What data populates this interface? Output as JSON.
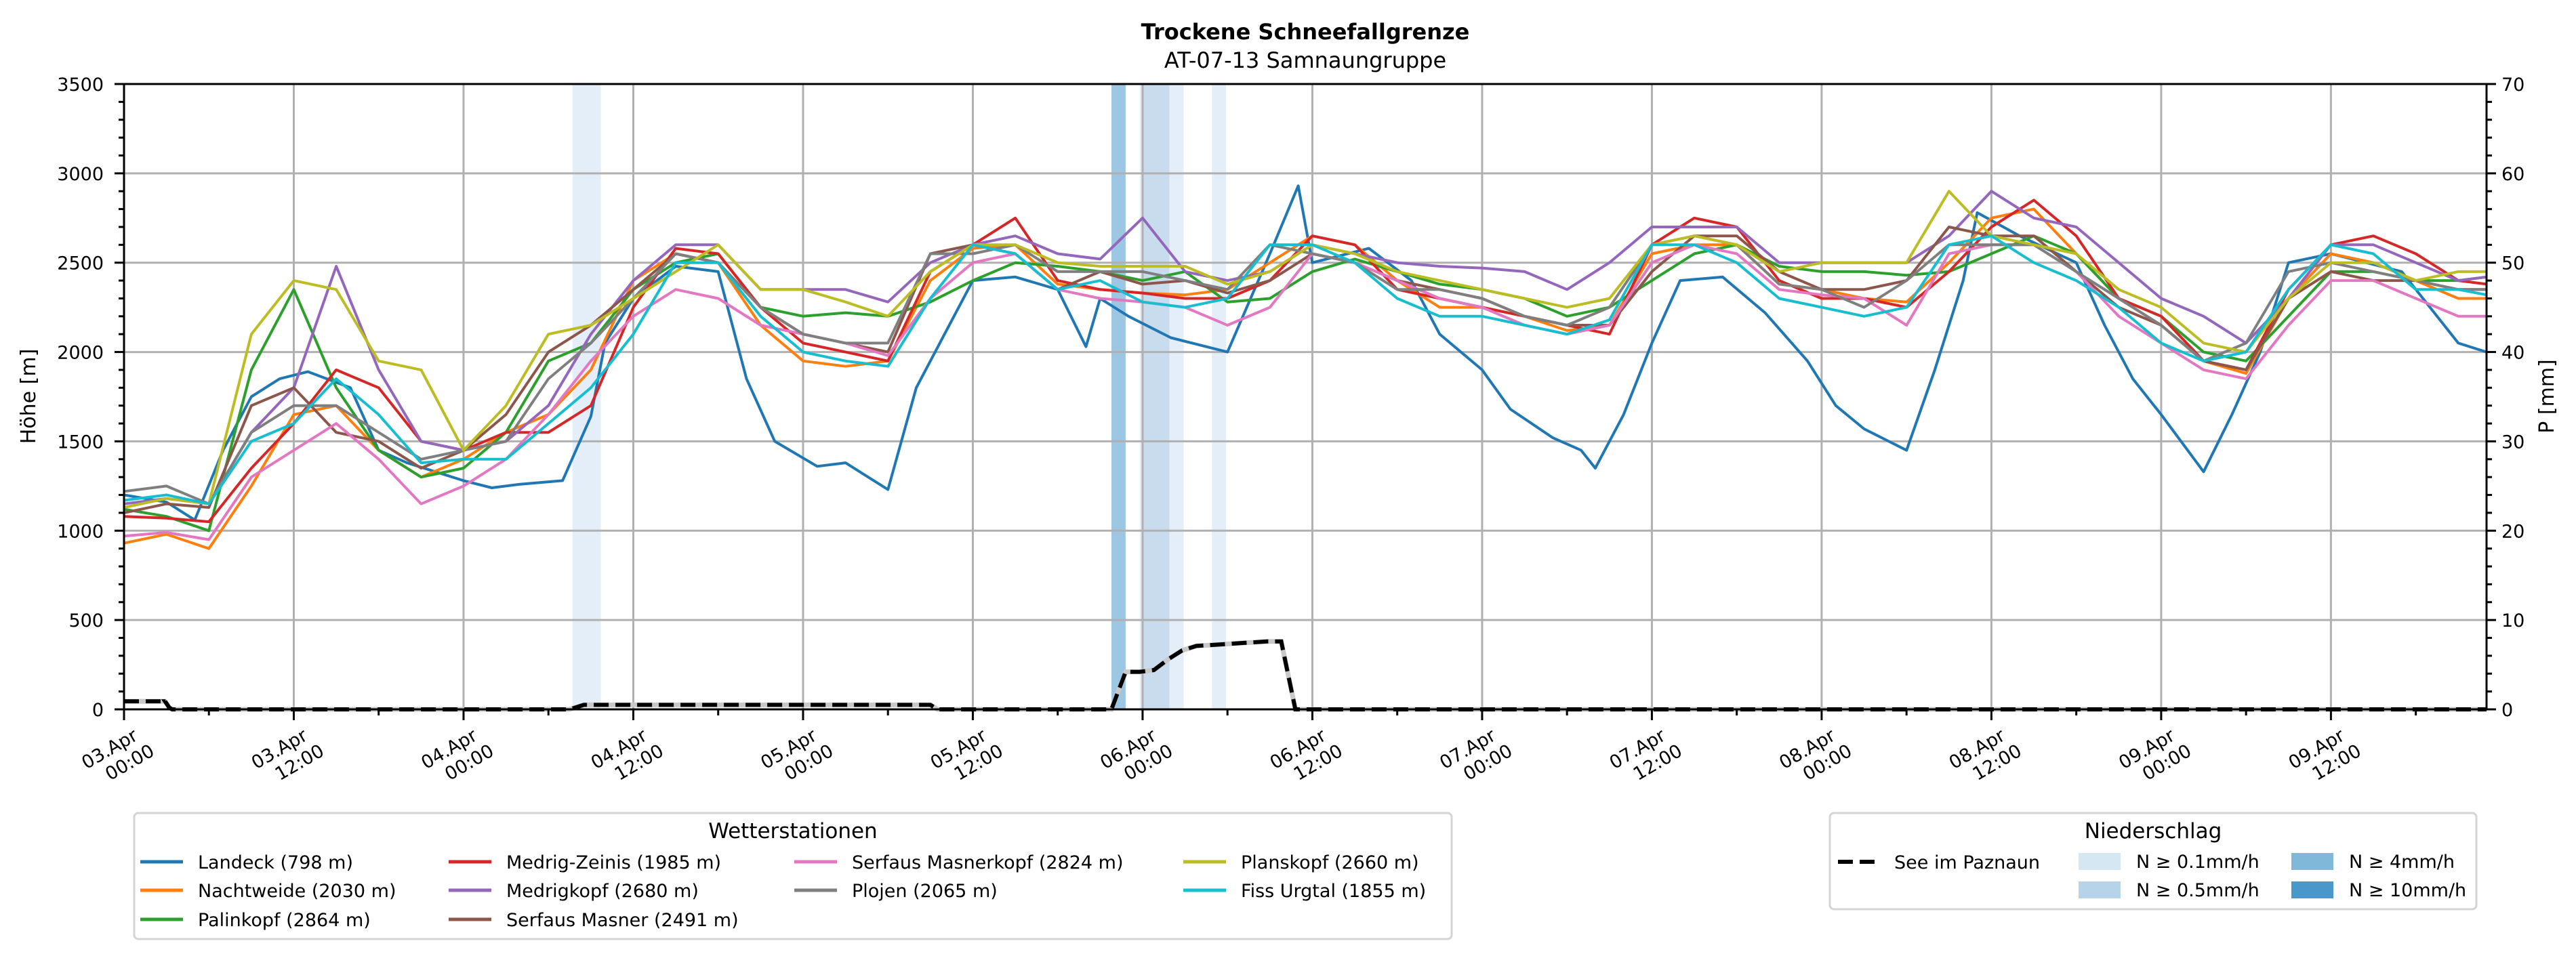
{
  "chart_data": {
    "type": "line",
    "title": "Trockene Schneefallgrenze",
    "subtitle": "AT-07-13 Samnaungruppe",
    "ylabel": "Höhe [m]",
    "ylabel_right": "P [mm]",
    "xlabel": "",
    "x_units": "hours since 03.Apr 00:00",
    "xlim": [
      0,
      167
    ],
    "ylim": [
      0,
      3500
    ],
    "ylim_right": [
      0,
      70
    ],
    "grid": true,
    "yticks": [
      "0",
      "500",
      "1000",
      "1500",
      "2000",
      "2500",
      "3000",
      "3500"
    ],
    "yticks_right": [
      "0",
      "10",
      "20",
      "30",
      "40",
      "50",
      "60",
      "70"
    ],
    "xticks": [
      {
        "h": 0,
        "line1": "03.Apr",
        "line2": "00:00"
      },
      {
        "h": 12,
        "line1": "03.Apr",
        "line2": "12:00"
      },
      {
        "h": 24,
        "line1": "04.Apr",
        "line2": "00:00"
      },
      {
        "h": 36,
        "line1": "04.Apr",
        "line2": "12:00"
      },
      {
        "h": 48,
        "line1": "05.Apr",
        "line2": "00:00"
      },
      {
        "h": 60,
        "line1": "05.Apr",
        "line2": "12:00"
      },
      {
        "h": 72,
        "line1": "06.Apr",
        "line2": "00:00"
      },
      {
        "h": 84,
        "line1": "06.Apr",
        "line2": "12:00"
      },
      {
        "h": 96,
        "line1": "07.Apr",
        "line2": "00:00"
      },
      {
        "h": 108,
        "line1": "07.Apr",
        "line2": "12:00"
      },
      {
        "h": 120,
        "line1": "08.Apr",
        "line2": "00:00"
      },
      {
        "h": 132,
        "line1": "08.Apr",
        "line2": "12:00"
      },
      {
        "h": 144,
        "line1": "09.Apr",
        "line2": "00:00"
      },
      {
        "h": 156,
        "line1": "09.Apr",
        "line2": "12:00"
      }
    ],
    "hours": [
      0,
      3,
      6,
      9,
      12,
      15,
      18,
      21,
      24,
      27,
      30,
      33,
      36,
      39,
      42,
      45,
      48,
      51,
      54,
      57,
      60,
      63,
      66,
      69,
      72,
      75,
      78,
      81,
      84,
      87,
      90,
      93,
      96,
      99,
      102,
      105,
      108,
      111,
      114,
      117,
      120,
      123,
      126,
      129,
      132,
      135,
      138,
      141,
      144,
      147,
      150,
      153,
      156,
      159,
      162,
      165,
      167
    ],
    "series": [
      {
        "name": "Landeck (798 m)",
        "color": "#1f77b4",
        "points": [
          [
            0,
            1200
          ],
          [
            3,
            1160
          ],
          [
            5,
            1060
          ],
          [
            7,
            1450
          ],
          [
            9,
            1750
          ],
          [
            11,
            1850
          ],
          [
            13,
            1890
          ],
          [
            16,
            1800
          ],
          [
            18,
            1450
          ],
          [
            20,
            1380
          ],
          [
            24,
            1280
          ],
          [
            26,
            1240
          ],
          [
            28,
            1260
          ],
          [
            31,
            1280
          ],
          [
            33,
            1640
          ],
          [
            34,
            2050
          ],
          [
            36,
            2300
          ],
          [
            39,
            2480
          ],
          [
            42,
            2450
          ],
          [
            44,
            1850
          ],
          [
            46,
            1500
          ],
          [
            49,
            1360
          ],
          [
            51,
            1380
          ],
          [
            54,
            1230
          ],
          [
            56,
            1800
          ],
          [
            58,
            2100
          ],
          [
            60,
            2400
          ],
          [
            63,
            2420
          ],
          [
            66,
            2350
          ],
          [
            68,
            2030
          ],
          [
            69,
            2300
          ],
          [
            71,
            2200
          ],
          [
            74,
            2080
          ],
          [
            78,
            2000
          ],
          [
            81,
            2550
          ],
          [
            83,
            2930
          ],
          [
            84,
            2500
          ],
          [
            88,
            2580
          ],
          [
            91,
            2400
          ],
          [
            93,
            2100
          ],
          [
            96,
            1900
          ],
          [
            98,
            1680
          ],
          [
            101,
            1520
          ],
          [
            103,
            1450
          ],
          [
            104,
            1350
          ],
          [
            106,
            1650
          ],
          [
            108,
            2050
          ],
          [
            110,
            2400
          ],
          [
            113,
            2420
          ],
          [
            116,
            2220
          ],
          [
            119,
            1950
          ],
          [
            121,
            1700
          ],
          [
            123,
            1570
          ],
          [
            126,
            1450
          ],
          [
            128,
            1900
          ],
          [
            130,
            2400
          ],
          [
            131,
            2780
          ],
          [
            134,
            2650
          ],
          [
            138,
            2500
          ],
          [
            140,
            2150
          ],
          [
            142,
            1850
          ],
          [
            144,
            1650
          ],
          [
            147,
            1330
          ],
          [
            149,
            1650
          ],
          [
            151,
            2000
          ],
          [
            153,
            2500
          ],
          [
            156,
            2550
          ],
          [
            161,
            2450
          ],
          [
            165,
            2050
          ],
          [
            167,
            2000
          ]
        ]
      },
      {
        "name": "Nachtweide (2030 m)",
        "color": "#ff7f0e",
        "values": [
          930,
          980,
          900,
          1250,
          1650,
          1700,
          1450,
          1300,
          1400,
          1550,
          1650,
          1900,
          2400,
          2550,
          2500,
          2150,
          1950,
          1920,
          1950,
          2400,
          2580,
          2600,
          2380,
          2350,
          2330,
          2320,
          2350,
          2500,
          2650,
          2600,
          2400,
          2250,
          2250,
          2200,
          2120,
          2150,
          2550,
          2600,
          2600,
          2380,
          2350,
          2300,
          2280,
          2500,
          2750,
          2800,
          2550,
          2300,
          2150,
          1950,
          1880,
          2300,
          2550,
          2500,
          2400,
          2300,
          2300
        ]
      },
      {
        "name": "Palinkopf (2864 m)",
        "color": "#2ca02c",
        "values": [
          1120,
          1080,
          1000,
          1900,
          2350,
          1800,
          1450,
          1300,
          1350,
          1550,
          1950,
          2050,
          2350,
          2500,
          2550,
          2250,
          2200,
          2220,
          2200,
          2280,
          2400,
          2500,
          2480,
          2450,
          2400,
          2450,
          2280,
          2300,
          2450,
          2520,
          2450,
          2380,
          2350,
          2300,
          2200,
          2250,
          2400,
          2550,
          2600,
          2480,
          2450,
          2450,
          2430,
          2450,
          2550,
          2650,
          2550,
          2300,
          2200,
          2000,
          1950,
          2200,
          2450,
          2450,
          2400,
          2400,
          2420
        ]
      },
      {
        "name": "Medrig-Zeinis (1985 m)",
        "color": "#d62728",
        "values": [
          1080,
          1070,
          1050,
          1350,
          1600,
          1900,
          1800,
          1500,
          1450,
          1550,
          1550,
          1700,
          2250,
          2580,
          2550,
          2250,
          2050,
          2000,
          1950,
          2450,
          2600,
          2750,
          2400,
          2350,
          2330,
          2300,
          2300,
          2400,
          2650,
          2600,
          2350,
          2300,
          2250,
          2200,
          2150,
          2100,
          2600,
          2750,
          2700,
          2400,
          2300,
          2300,
          2250,
          2450,
          2700,
          2850,
          2650,
          2300,
          2200,
          1950,
          1900,
          2350,
          2600,
          2650,
          2550,
          2400,
          2380
        ]
      },
      {
        "name": "Medrigkopf (2680 m)",
        "color": "#9467bd",
        "values": [
          1150,
          1180,
          1150,
          1550,
          1800,
          2480,
          1900,
          1500,
          1450,
          1500,
          1700,
          2100,
          2400,
          2600,
          2600,
          2350,
          2350,
          2350,
          2280,
          2500,
          2600,
          2650,
          2550,
          2520,
          2750,
          2450,
          2400,
          2450,
          2600,
          2550,
          2500,
          2480,
          2470,
          2450,
          2350,
          2500,
          2700,
          2700,
          2700,
          2500,
          2500,
          2500,
          2500,
          2650,
          2900,
          2750,
          2700,
          2500,
          2300,
          2200,
          2050,
          2300,
          2600,
          2600,
          2500,
          2400,
          2420
        ]
      },
      {
        "name": "Serfaus Masner (2491 m)",
        "color": "#8c564b",
        "values": [
          1100,
          1150,
          1130,
          1700,
          1800,
          1550,
          1500,
          1350,
          1450,
          1650,
          2000,
          2150,
          2350,
          2550,
          2500,
          2250,
          2100,
          2050,
          2000,
          2550,
          2600,
          2550,
          2350,
          2450,
          2380,
          2400,
          2330,
          2400,
          2550,
          2500,
          2400,
          2350,
          2300,
          2200,
          2150,
          2150,
          2450,
          2650,
          2650,
          2450,
          2350,
          2350,
          2400,
          2700,
          2650,
          2650,
          2450,
          2250,
          2150,
          1950,
          1900,
          2300,
          2450,
          2400,
          2400,
          2350,
          2350
        ]
      },
      {
        "name": "Serfaus Masnerkopf (2824 m)",
        "color": "#e377c2",
        "values": [
          970,
          990,
          950,
          1300,
          1450,
          1600,
          1400,
          1150,
          1250,
          1400,
          1650,
          1950,
          2200,
          2350,
          2300,
          2150,
          2100,
          2050,
          1980,
          2300,
          2500,
          2550,
          2350,
          2300,
          2280,
          2250,
          2150,
          2250,
          2550,
          2500,
          2400,
          2300,
          2250,
          2150,
          2100,
          2150,
          2500,
          2600,
          2550,
          2350,
          2320,
          2300,
          2150,
          2550,
          2600,
          2600,
          2450,
          2200,
          2050,
          1900,
          1850,
          2150,
          2400,
          2400,
          2300,
          2200,
          2200
        ]
      },
      {
        "name": "Plojen (2065 m)",
        "color": "#7f7f7f",
        "values": [
          1220,
          1250,
          1150,
          1550,
          1700,
          1700,
          1550,
          1400,
          1450,
          1500,
          1850,
          2050,
          2300,
          2550,
          2500,
          2250,
          2100,
          2050,
          2050,
          2550,
          2550,
          2600,
          2450,
          2450,
          2450,
          2400,
          2350,
          2600,
          2550,
          2500,
          2350,
          2350,
          2300,
          2200,
          2150,
          2250,
          2600,
          2650,
          2600,
          2380,
          2350,
          2250,
          2400,
          2600,
          2600,
          2600,
          2450,
          2300,
          2150,
          1950,
          2050,
          2450,
          2500,
          2450,
          2400,
          2350,
          2350
        ]
      },
      {
        "name": "Planskopf (2660 m)",
        "color": "#bcbd22",
        "values": [
          1130,
          1180,
          1150,
          2100,
          2400,
          2350,
          1950,
          1900,
          1450,
          1700,
          2100,
          2150,
          2300,
          2450,
          2600,
          2350,
          2350,
          2280,
          2200,
          2450,
          2600,
          2600,
          2500,
          2480,
          2480,
          2480,
          2380,
          2450,
          2600,
          2550,
          2450,
          2400,
          2350,
          2300,
          2250,
          2300,
          2600,
          2650,
          2600,
          2450,
          2500,
          2500,
          2500,
          2900,
          2650,
          2600,
          2550,
          2350,
          2250,
          2050,
          2000,
          2300,
          2500,
          2500,
          2400,
          2450,
          2450
        ]
      },
      {
        "name": "Fiss Urgtal  (1855 m)",
        "color": "#17becf",
        "values": [
          1170,
          1200,
          1150,
          1500,
          1600,
          1850,
          1650,
          1380,
          1400,
          1400,
          1600,
          1800,
          2100,
          2500,
          2500,
          2200,
          2000,
          1950,
          1920,
          2300,
          2600,
          2550,
          2350,
          2400,
          2280,
          2250,
          2300,
          2600,
          2600,
          2500,
          2300,
          2200,
          2200,
          2150,
          2100,
          2180,
          2600,
          2600,
          2500,
          2300,
          2250,
          2200,
          2250,
          2600,
          2650,
          2500,
          2400,
          2250,
          2050,
          1950,
          2000,
          2350,
          2600,
          2550,
          2350,
          2350,
          2320
        ]
      }
    ],
    "precip_series": {
      "name": "See im Paznaun",
      "color": "#000000",
      "axis": "right",
      "points": [
        [
          0,
          0.9
        ],
        [
          3,
          0.9
        ],
        [
          2.9,
          0.9
        ],
        [
          3.2,
          0.2
        ],
        [
          3.4,
          0
        ],
        [
          31.5,
          0
        ],
        [
          32.5,
          0.5
        ],
        [
          57,
          0.5
        ],
        [
          57.5,
          0
        ],
        [
          69.8,
          0
        ],
        [
          70.8,
          4.2
        ],
        [
          71.8,
          4.2
        ],
        [
          72.8,
          4.4
        ],
        [
          73.8,
          5.6
        ],
        [
          74.8,
          6.6
        ],
        [
          75.8,
          7.1
        ],
        [
          76.8,
          7.2
        ],
        [
          78.8,
          7.4
        ],
        [
          80.8,
          7.6
        ],
        [
          81.8,
          7.6
        ],
        [
          82.8,
          0
        ],
        [
          167,
          0
        ]
      ]
    },
    "precip_bars": [
      {
        "start": 31.7,
        "end": 33.7,
        "class": "N ≥ 0.1mm/h"
      },
      {
        "start": 69.8,
        "end": 70.8,
        "class": "N ≥ 4mm/h"
      },
      {
        "start": 71.8,
        "end": 72.0,
        "class": "N ≥ 0.1mm/h"
      },
      {
        "start": 72.0,
        "end": 73.9,
        "class": "N ≥ 0.5mm/h"
      },
      {
        "start": 73.9,
        "end": 74.9,
        "class": "N ≥ 0.1mm/h"
      },
      {
        "start": 76.9,
        "end": 77.9,
        "class": "N ≥ 0.1mm/h"
      }
    ],
    "legend_stations": {
      "title": "Wetterstationen",
      "placement": "bottom-left",
      "columns": [
        [
          "Landeck (798 m)",
          "Nachtweide (2030 m)",
          "Palinkopf (2864 m)"
        ],
        [
          "Medrig-Zeinis (1985 m)",
          "Medrigkopf (2680 m)",
          "Serfaus Masner (2491 m)"
        ],
        [
          "Serfaus Masnerkopf (2824 m)",
          "Plojen (2065 m)"
        ],
        [
          "Planskopf (2660 m)",
          "Fiss Urgtal  (1855 m)"
        ]
      ]
    },
    "legend_precip": {
      "title": "Niederschlag",
      "placement": "bottom-right",
      "line_entry": "See im Paznaun",
      "classes": [
        {
          "label": "N ≥ 0.1mm/h",
          "color": "#d6e7f4"
        },
        {
          "label": "N ≥ 0.5mm/h",
          "color": "#b7d3ea"
        },
        {
          "label": "N ≥ 4mm/h",
          "color": "#80b8da"
        },
        {
          "label": "N ≥ 10mm/h",
          "color": "#4a98c9"
        }
      ]
    },
    "bar_colors": {
      "N ≥ 0.1mm/h": "#e4eef8",
      "N ≥ 0.5mm/h": "#c8dcee",
      "N ≥ 4mm/h": "#9cc6e2",
      "N ≥ 10mm/h": "#4a98c9"
    }
  }
}
